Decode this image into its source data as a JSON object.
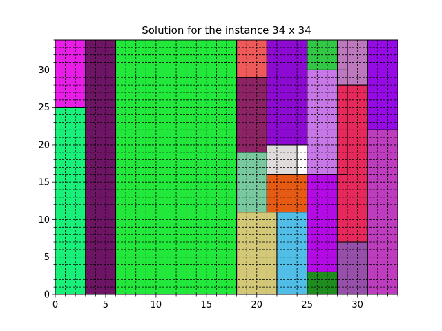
{
  "chart_data": {
    "type": "rectangle-packing",
    "title": "Solution for the instance 34 x 34",
    "xlabel": "",
    "ylabel": "",
    "xlim": [
      0,
      34
    ],
    "ylim": [
      0,
      34
    ],
    "xticks": [
      0,
      5,
      10,
      15,
      20,
      25,
      30
    ],
    "yticks": [
      0,
      5,
      10,
      15,
      20,
      25,
      30
    ],
    "grid": true,
    "grid_step": 1,
    "rectangles": [
      {
        "x": 0,
        "y": 25,
        "w": 3,
        "h": 9,
        "color": "#e81ee8"
      },
      {
        "x": 0,
        "y": 0,
        "w": 3,
        "h": 25,
        "color": "#19f07a"
      },
      {
        "x": 3,
        "y": 0,
        "w": 3,
        "h": 34,
        "color": "#6e1464"
      },
      {
        "x": 6,
        "y": 0,
        "w": 12,
        "h": 34,
        "color": "#22e83c"
      },
      {
        "x": 18,
        "y": 29,
        "w": 3,
        "h": 5,
        "color": "#ee5a5a"
      },
      {
        "x": 18,
        "y": 19,
        "w": 3,
        "h": 10,
        "color": "#8c2464"
      },
      {
        "x": 18,
        "y": 11,
        "w": 3,
        "h": 8,
        "color": "#78c8a0"
      },
      {
        "x": 18,
        "y": 0,
        "w": 4,
        "h": 11,
        "color": "#d2c878"
      },
      {
        "x": 21,
        "y": 20,
        "w": 4,
        "h": 14,
        "color": "#8c0ad2"
      },
      {
        "x": 21,
        "y": 16,
        "w": 3,
        "h": 4,
        "color": "#e1dcdc"
      },
      {
        "x": 21,
        "y": 11,
        "w": 4,
        "h": 5,
        "color": "#e65a14"
      },
      {
        "x": 22,
        "y": 0,
        "w": 3,
        "h": 11,
        "color": "#50bee6"
      },
      {
        "x": 25,
        "y": 30,
        "w": 4,
        "h": 4,
        "color": "#32c846"
      },
      {
        "x": 25,
        "y": 16,
        "w": 4,
        "h": 14,
        "color": "#c878e6"
      },
      {
        "x": 25,
        "y": 3,
        "w": 3,
        "h": 13,
        "color": "#b40ae6"
      },
      {
        "x": 25,
        "y": 0,
        "w": 3,
        "h": 3,
        "color": "#1e8c1e"
      },
      {
        "x": 28,
        "y": 28,
        "w": 3,
        "h": 6,
        "color": "#be78be"
      },
      {
        "x": 28,
        "y": 7,
        "w": 3,
        "h": 21,
        "color": "#e6285a"
      },
      {
        "x": 28,
        "y": 0,
        "w": 3,
        "h": 7,
        "color": "#9650aa"
      },
      {
        "x": 31,
        "y": 22,
        "w": 3,
        "h": 12,
        "color": "#960ae6"
      },
      {
        "x": 31,
        "y": 0,
        "w": 3,
        "h": 22,
        "color": "#be3cbe"
      }
    ]
  }
}
